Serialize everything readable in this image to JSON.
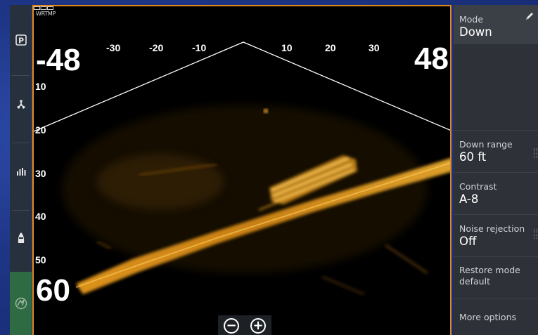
{
  "status": {
    "label": "WRTMP"
  },
  "sonar": {
    "left_range": "-48",
    "right_range": "48",
    "depth_range": "60",
    "horizontal_ticks": [
      "-30",
      "-20",
      "-10",
      "10",
      "20",
      "30"
    ],
    "depth_ticks": [
      "10",
      "20",
      "30",
      "40",
      "50"
    ]
  },
  "zoom": {
    "out_label": "−",
    "in_label": "+"
  },
  "rail": {
    "icons": [
      "p-icon",
      "fan-icon",
      "bars-icon",
      "boat-icon",
      "brand-icon"
    ]
  },
  "menu": {
    "mode": {
      "label": "Mode",
      "value": "Down"
    },
    "down_range": {
      "label": "Down range",
      "value": "60 ft"
    },
    "contrast": {
      "label": "Contrast",
      "value": "A-8"
    },
    "noise_rejection": {
      "label": "Noise rejection",
      "value": "Off"
    },
    "restore": {
      "label": "Restore mode default"
    },
    "more_options": {
      "label": "More options"
    }
  },
  "colors": {
    "accent_orange": "#e08a1c",
    "sonar_return": "#f0a020",
    "panel": "#2e3238",
    "active_green": "#2f6b42"
  }
}
